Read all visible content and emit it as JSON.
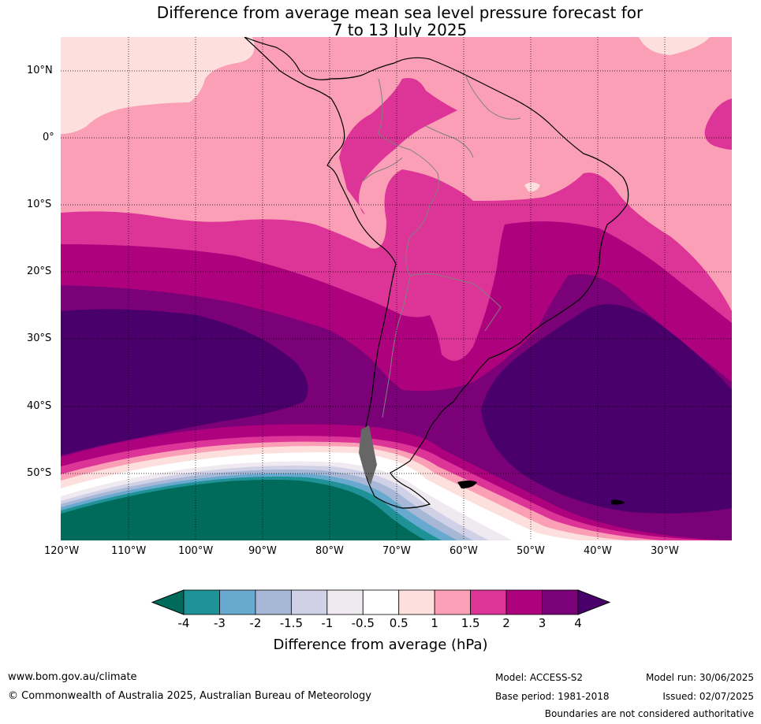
{
  "title_line1": "Difference from average mean sea level pressure forecast for",
  "title_line2": "7 to 13 July 2025",
  "lat_labels": [
    "10°N",
    "0°",
    "10°S",
    "20°S",
    "30°S",
    "40°S",
    "50°S"
  ],
  "lon_labels": [
    "120°W",
    "110°W",
    "100°W",
    "90°W",
    "80°W",
    "70°W",
    "60°W",
    "50°W",
    "40°W",
    "30°W"
  ],
  "colorbar": {
    "ticks": [
      "-4",
      "-3",
      "-2",
      "-1.5",
      "-1",
      "-0.5",
      "0.5",
      "1",
      "1.5",
      "2",
      "3",
      "4"
    ],
    "colors": [
      "#006b5a",
      "#1f9297",
      "#67a9cf",
      "#a6b8d6",
      "#d0d1e6",
      "#efe9f0",
      "#ffffff",
      "#fde0dd",
      "#fa9fb5",
      "#dd3497",
      "#ae017e",
      "#7a0177",
      "#49006a"
    ],
    "title": "Difference from average (hPa)"
  },
  "footer": {
    "url": "www.bom.gov.au/climate",
    "copyright": "© Commonwealth of Australia 2025, Australian Bureau of Meteorology",
    "model": "Model: ACCESS-S2",
    "base_period": "Base period: 1981-2018",
    "model_run": "Model run: 30/06/2025",
    "issued": "Issued: 02/07/2025",
    "boundaries": "Boundaries are not considered authoritative"
  }
}
